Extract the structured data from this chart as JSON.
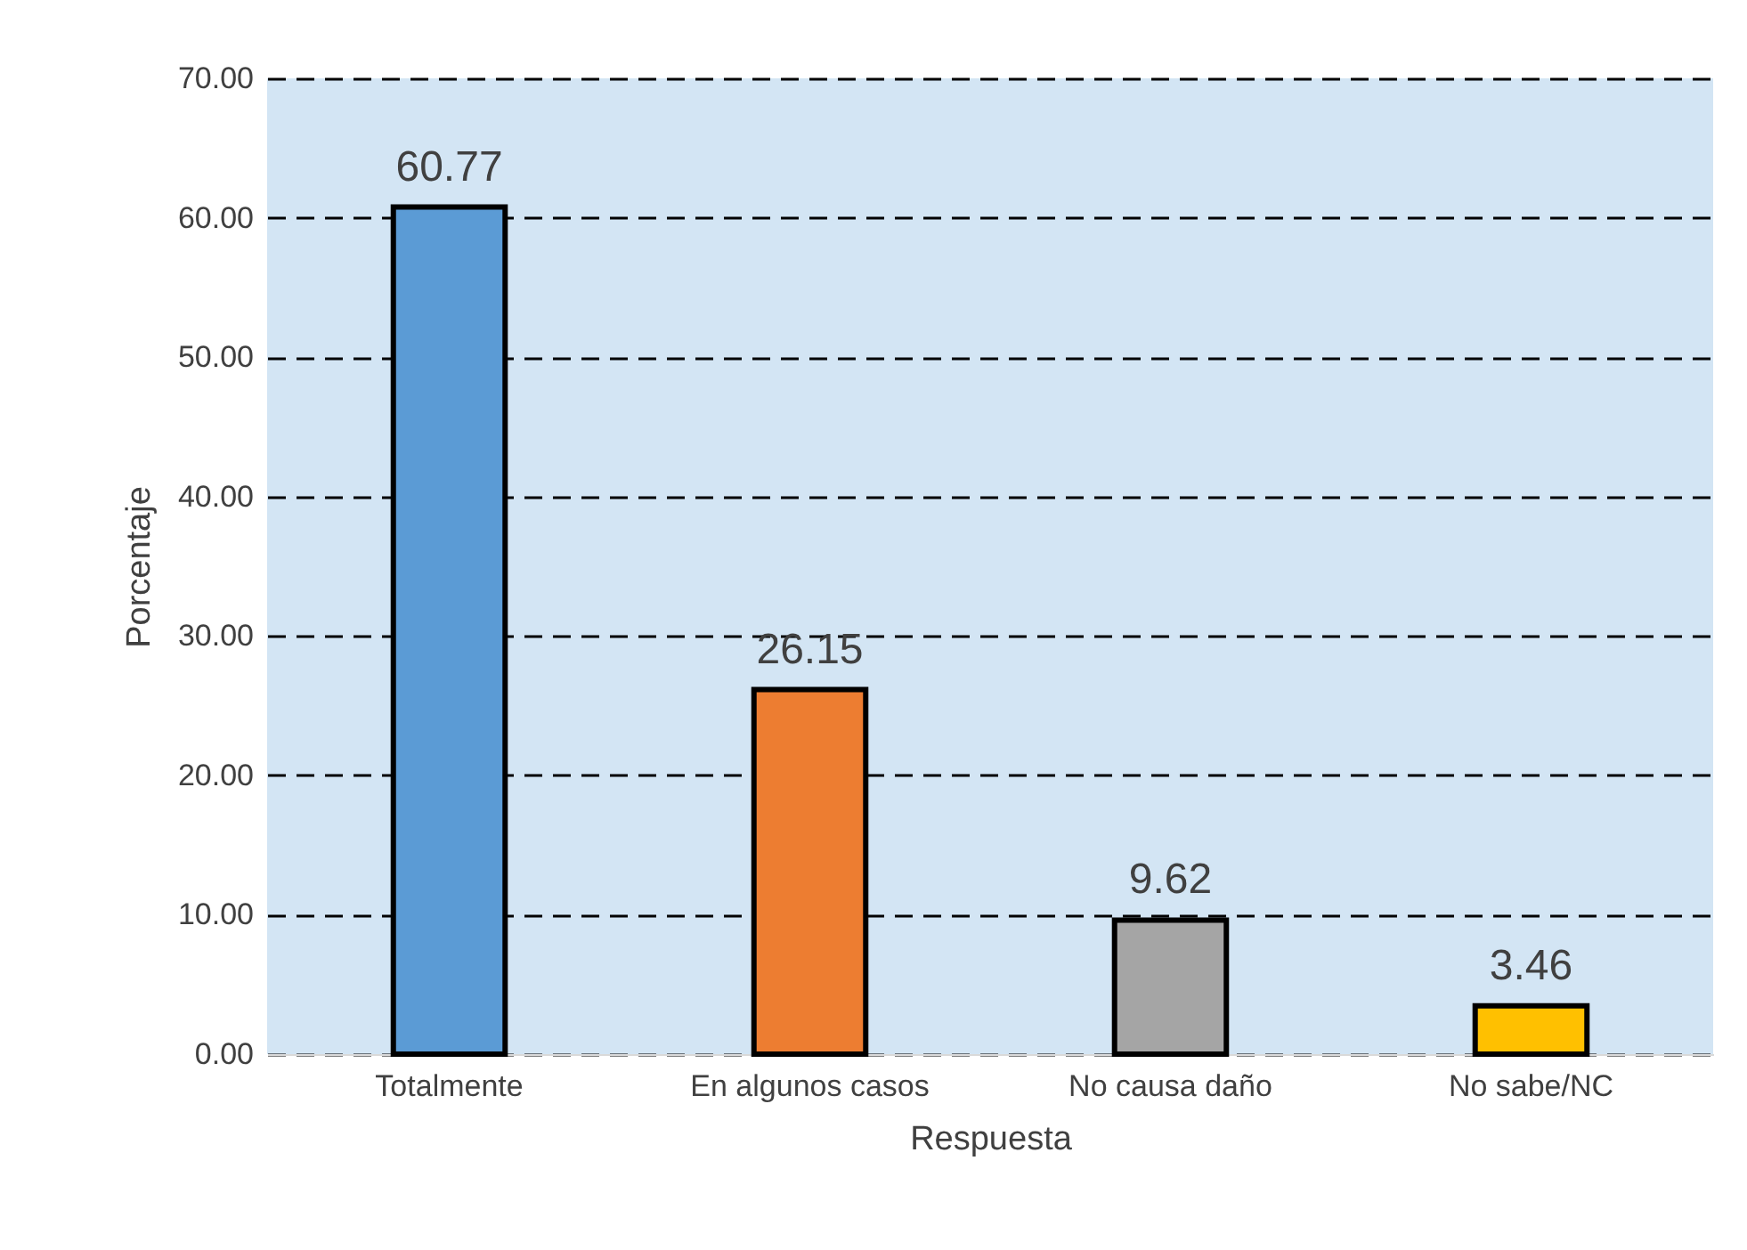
{
  "chart_data": {
    "type": "bar",
    "xlabel": "Respuesta",
    "ylabel": "Porcentaje",
    "categories": [
      "Totalmente",
      "En algunos casos",
      "No causa daño",
      "No sabe/NC"
    ],
    "values": [
      60.77,
      26.15,
      9.62,
      3.46
    ],
    "colors": [
      "#5b9bd5",
      "#ed7d31",
      "#a5a5a5",
      "#ffc000"
    ],
    "ylim": [
      0,
      70
    ],
    "yticks": [
      {
        "value": 0,
        "label": "0.00"
      },
      {
        "value": 10,
        "label": "10.00"
      },
      {
        "value": 20,
        "label": "20.00"
      },
      {
        "value": 30,
        "label": "30.00"
      },
      {
        "value": 40,
        "label": "40.00"
      },
      {
        "value": 50,
        "label": "50.00"
      },
      {
        "value": 60,
        "label": "60.00"
      },
      {
        "value": 70,
        "label": "70.00"
      }
    ],
    "grid": "y",
    "data_labels": true
  }
}
